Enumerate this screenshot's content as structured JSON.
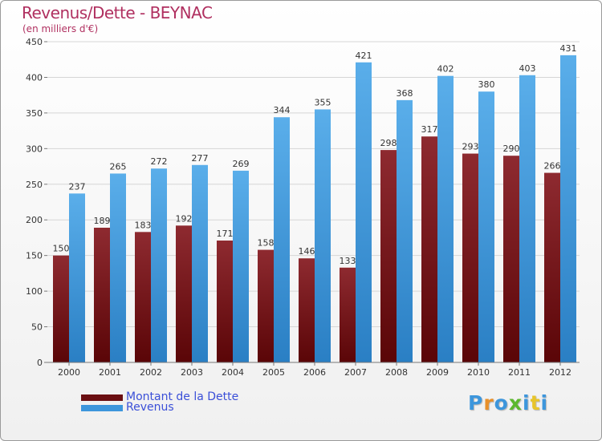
{
  "chart_data": {
    "type": "bar",
    "title": "Revenus/Dette - BEYNAC",
    "subtitle": "(en milliers d'€)",
    "categories": [
      "2000",
      "2001",
      "2002",
      "2003",
      "2004",
      "2005",
      "2006",
      "2007",
      "2008",
      "2009",
      "2010",
      "2011",
      "2012"
    ],
    "series": [
      {
        "name": "Montant de la Dette",
        "color": "#7a1a1f",
        "values": [
          150,
          189,
          183,
          192,
          171,
          158,
          146,
          133,
          298,
          317,
          293,
          290,
          266
        ]
      },
      {
        "name": "Revenus",
        "color": "#3d96dc",
        "values": [
          237,
          265,
          272,
          277,
          269,
          344,
          355,
          421,
          368,
          402,
          380,
          403,
          431
        ]
      }
    ],
    "ylim": [
      0,
      450
    ],
    "yticks": [
      0,
      50,
      100,
      150,
      200,
      250,
      300,
      350,
      400,
      450
    ],
    "grid": true,
    "legend_position": "bottom-left"
  },
  "legend": {
    "items": [
      {
        "label": "Montant de la Dette",
        "color": "#6b0f12"
      },
      {
        "label": "Revenus",
        "color": "#3d96dc"
      }
    ]
  },
  "logo": {
    "letters": [
      "P",
      "r",
      "o",
      "x",
      "i",
      "t",
      "i"
    ],
    "colors": [
      "#3d96dc",
      "#e8902a",
      "#3d96dc",
      "#5cb82e",
      "#3d96dc",
      "#e8c52a",
      "#3d96dc"
    ]
  }
}
